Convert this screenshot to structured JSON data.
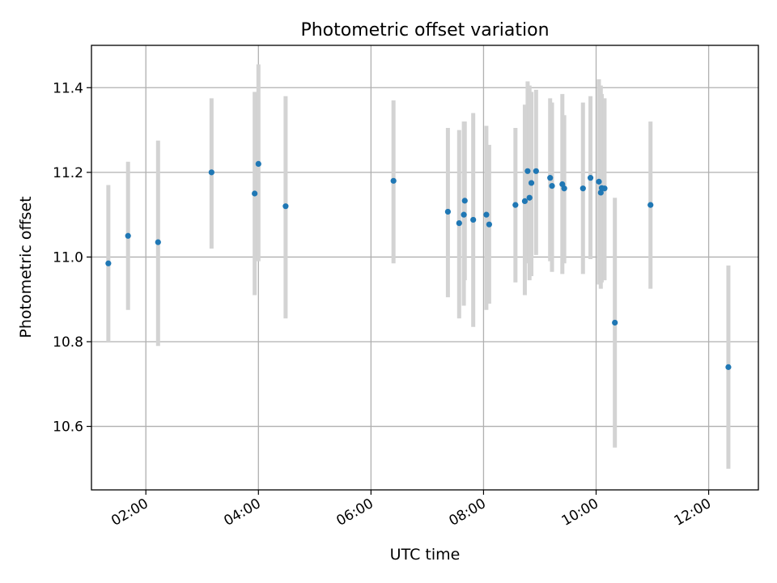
{
  "chart_data": {
    "type": "scatter",
    "title": "Photometric offset variation",
    "xlabel": "UTC time",
    "ylabel": "Photometric offset",
    "xlim": [
      "01:02",
      "12:53"
    ],
    "ylim": [
      10.45,
      11.5
    ],
    "x_ticks": [
      "02:00",
      "04:00",
      "06:00",
      "08:00",
      "10:00",
      "12:00"
    ],
    "y_ticks": [
      "10.6",
      "10.8",
      "11.0",
      "11.2",
      "11.4"
    ],
    "grid": true,
    "legend": "none",
    "point_color": "#1f77b4",
    "errorbar_color": "#d3d3d3",
    "points": [
      {
        "x": "01:20",
        "y": 10.985,
        "err_low": 10.8,
        "err_high": 11.17
      },
      {
        "x": "01:41",
        "y": 11.05,
        "err_low": 10.875,
        "err_high": 11.225
      },
      {
        "x": "02:13",
        "y": 11.035,
        "err_low": 10.79,
        "err_high": 11.275
      },
      {
        "x": "03:10",
        "y": 11.2,
        "err_low": 11.02,
        "err_high": 11.375
      },
      {
        "x": "03:56",
        "y": 11.15,
        "err_low": 10.91,
        "err_high": 11.39
      },
      {
        "x": "04:00",
        "y": 11.22,
        "err_low": 10.99,
        "err_high": 11.455
      },
      {
        "x": "04:29",
        "y": 11.12,
        "err_low": 10.855,
        "err_high": 11.38
      },
      {
        "x": "06:24",
        "y": 11.18,
        "err_low": 10.985,
        "err_high": 11.37
      },
      {
        "x": "07:22",
        "y": 11.107,
        "err_low": 10.905,
        "err_high": 11.305
      },
      {
        "x": "07:34",
        "y": 11.08,
        "err_low": 10.855,
        "err_high": 11.3
      },
      {
        "x": "07:39",
        "y": 11.1,
        "err_low": 10.885,
        "err_high": 11.32
      },
      {
        "x": "07:40",
        "y": 11.133,
        "err_low": 10.945,
        "err_high": 11.32
      },
      {
        "x": "07:49",
        "y": 11.088,
        "err_low": 10.835,
        "err_high": 11.34
      },
      {
        "x": "08:03",
        "y": 11.1,
        "err_low": 10.875,
        "err_high": 11.31
      },
      {
        "x": "08:06",
        "y": 11.077,
        "err_low": 10.89,
        "err_high": 11.265
      },
      {
        "x": "08:34",
        "y": 11.123,
        "err_low": 10.94,
        "err_high": 11.305
      },
      {
        "x": "08:44",
        "y": 11.132,
        "err_low": 10.91,
        "err_high": 11.36
      },
      {
        "x": "08:47",
        "y": 11.203,
        "err_low": 10.985,
        "err_high": 11.415
      },
      {
        "x": "08:49",
        "y": 11.14,
        "err_low": 10.945,
        "err_high": 11.405
      },
      {
        "x": "08:51",
        "y": 11.175,
        "err_low": 10.955,
        "err_high": 11.39
      },
      {
        "x": "08:56",
        "y": 11.203,
        "err_low": 11.005,
        "err_high": 11.395
      },
      {
        "x": "09:11",
        "y": 11.187,
        "err_low": 10.99,
        "err_high": 11.375
      },
      {
        "x": "09:13",
        "y": 11.168,
        "err_low": 10.965,
        "err_high": 11.365
      },
      {
        "x": "09:24",
        "y": 11.172,
        "err_low": 10.96,
        "err_high": 11.385
      },
      {
        "x": "09:26",
        "y": 11.162,
        "err_low": 10.985,
        "err_high": 11.335
      },
      {
        "x": "09:46",
        "y": 11.162,
        "err_low": 10.96,
        "err_high": 11.365
      },
      {
        "x": "09:54",
        "y": 11.187,
        "err_low": 10.995,
        "err_high": 11.38
      },
      {
        "x": "10:03",
        "y": 11.178,
        "err_low": 10.935,
        "err_high": 11.42
      },
      {
        "x": "10:05",
        "y": 11.152,
        "err_low": 10.925,
        "err_high": 11.405
      },
      {
        "x": "10:06",
        "y": 11.163,
        "err_low": 10.94,
        "err_high": 11.385
      },
      {
        "x": "10:09",
        "y": 11.162,
        "err_low": 10.945,
        "err_high": 11.375
      },
      {
        "x": "10:20",
        "y": 10.845,
        "err_low": 10.55,
        "err_high": 11.14
      },
      {
        "x": "10:58",
        "y": 11.123,
        "err_low": 10.925,
        "err_high": 11.32
      },
      {
        "x": "12:21",
        "y": 10.74,
        "err_low": 10.5,
        "err_high": 10.98
      }
    ]
  }
}
